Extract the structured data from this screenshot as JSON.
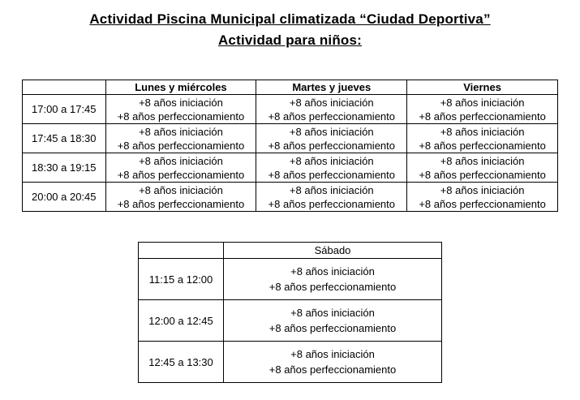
{
  "title": {
    "line1": "Actividad Piscina Municipal climatizada “Ciudad Deportiva”",
    "line2": "Actividad para niños:"
  },
  "weekday_table": {
    "headers": [
      "",
      "Lunes y miércoles",
      "Martes y jueves",
      "Viernes"
    ],
    "rows": [
      {
        "time": "17:00 a 17:45",
        "slots": [
          {
            "l1": "+8 años iniciación",
            "l2": "+8 años perfeccionamiento"
          },
          {
            "l1": "+8 años iniciación",
            "l2": "+8 años perfeccionamiento"
          },
          {
            "l1": "+8 años iniciación",
            "l2": "+8 años perfeccionamiento"
          }
        ]
      },
      {
        "time": "17:45 a 18:30",
        "slots": [
          {
            "l1": "+8 años iniciación",
            "l2": "+8 años perfeccionamiento"
          },
          {
            "l1": "+8 años iniciación",
            "l2": "+8 años perfeccionamiento"
          },
          {
            "l1": "+8 años iniciación",
            "l2": "+8 años perfeccionamiento"
          }
        ]
      },
      {
        "time": "18:30 a 19:15",
        "slots": [
          {
            "l1": "+8 años iniciación",
            "l2": "+8 años perfeccionamiento"
          },
          {
            "l1": "+8 años iniciación",
            "l2": "+8 años perfeccionamiento"
          },
          {
            "l1": "+8 años iniciación",
            "l2": "+8 años perfeccionamiento"
          }
        ]
      },
      {
        "time": "20:00 a 20:45",
        "slots": [
          {
            "l1": "+8 años iniciación",
            "l2": "+8 años perfeccionamiento"
          },
          {
            "l1": "+8 años iniciación",
            "l2": "+8 años perfeccionamiento"
          },
          {
            "l1": "+8 años iniciación",
            "l2": "+8 años perfeccionamiento"
          }
        ]
      }
    ]
  },
  "saturday_table": {
    "header": "Sábado",
    "rows": [
      {
        "time": "11:15 a 12:00",
        "l1": "+8 años iniciación",
        "l2": "+8 años perfeccionamiento"
      },
      {
        "time": "12:00 a 12:45",
        "l1": "+8 años iniciación",
        "l2": "+8 años perfeccionamiento"
      },
      {
        "time": "12:45 a 13:30",
        "l1": "+8 años iniciación",
        "l2": "+8 años perfeccionamiento"
      }
    ]
  }
}
